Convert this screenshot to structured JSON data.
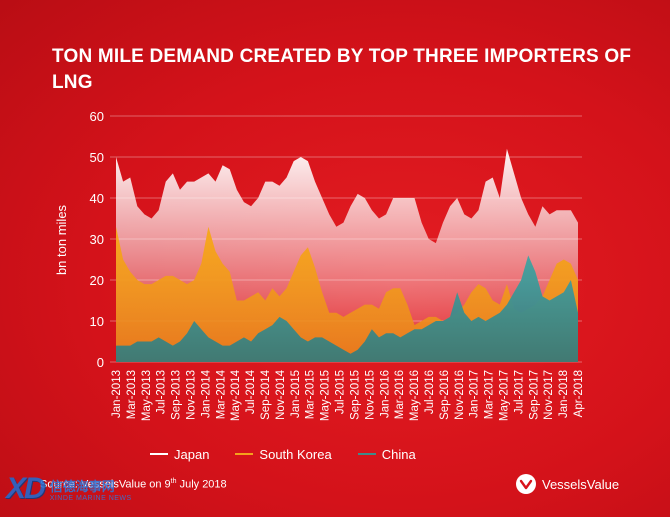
{
  "title": "TON MILE DEMAND CREATED BY TOP THREE IMPORTERS OF LNG",
  "source": "Source: VesselsValue on 9th July 2018",
  "brand": {
    "name": "VesselsValue"
  },
  "watermark": {
    "cn": "信德海事网",
    "en": "XINDE MARINE NEWS"
  },
  "colors": {
    "background": "#d8141b",
    "japan": "#ffffff",
    "south_korea": "#f5a11c",
    "china": "#3f8b8b"
  },
  "chart_data": {
    "type": "area",
    "title": "TON MILE DEMAND CREATED BY TOP THREE IMPORTERS OF LNG",
    "ylabel": "bn ton miles",
    "xlabel": "",
    "ylim": [
      0,
      60
    ],
    "yticks": [
      0,
      10,
      20,
      30,
      40,
      50,
      60
    ],
    "grid": true,
    "legend_position": "bottom",
    "x_tick_labels": [
      "Jan-2013",
      "Mar-2013",
      "May-2013",
      "Jul-2013",
      "Sep-2013",
      "Nov-2013",
      "Jan-2014",
      "Mar-2014",
      "May-2014",
      "Jul-2014",
      "Sep-2014",
      "Nov-2014",
      "Jan-2015",
      "Mar-2015",
      "May-2015",
      "Jul-2015",
      "Sep-2015",
      "Nov-2015",
      "Jan-2016",
      "Mar-2016",
      "May-2016",
      "Jul-2016",
      "Sep-2016",
      "Nov-2016",
      "Jan-2017",
      "Mar-2017",
      "May-2017",
      "Jul-2017",
      "Sep-2017",
      "Nov-2017",
      "Jan-2018",
      "Apr-2018"
    ],
    "x_months": [
      "2013-01",
      "2013-02",
      "2013-03",
      "2013-04",
      "2013-05",
      "2013-06",
      "2013-07",
      "2013-08",
      "2013-09",
      "2013-10",
      "2013-11",
      "2013-12",
      "2014-01",
      "2014-02",
      "2014-03",
      "2014-04",
      "2014-05",
      "2014-06",
      "2014-07",
      "2014-08",
      "2014-09",
      "2014-10",
      "2014-11",
      "2014-12",
      "2015-01",
      "2015-02",
      "2015-03",
      "2015-04",
      "2015-05",
      "2015-06",
      "2015-07",
      "2015-08",
      "2015-09",
      "2015-10",
      "2015-11",
      "2015-12",
      "2016-01",
      "2016-02",
      "2016-03",
      "2016-04",
      "2016-05",
      "2016-06",
      "2016-07",
      "2016-08",
      "2016-09",
      "2016-10",
      "2016-11",
      "2016-12",
      "2017-01",
      "2017-02",
      "2017-03",
      "2017-04",
      "2017-05",
      "2017-06",
      "2017-07",
      "2017-08",
      "2017-09",
      "2017-10",
      "2017-11",
      "2017-12",
      "2018-01",
      "2018-02",
      "2018-03",
      "2018-04",
      "2018-05",
      "2018-06"
    ],
    "series": [
      {
        "name": "Japan",
        "color": "#ffffff",
        "values": [
          50,
          44,
          45,
          38,
          36,
          35,
          37,
          44,
          46,
          42,
          44,
          44,
          45,
          46,
          44,
          48,
          47,
          42,
          39,
          38,
          40,
          44,
          44,
          43,
          45,
          49,
          50,
          49,
          44,
          40,
          36,
          33,
          34,
          38,
          41,
          40,
          37,
          35,
          36,
          40,
          40,
          40,
          40,
          34,
          30,
          29,
          34,
          38,
          40,
          36,
          35,
          37,
          44,
          45,
          40,
          52,
          46,
          40,
          36,
          33,
          38,
          36,
          37,
          37,
          37,
          34
        ]
      },
      {
        "name": "South Korea",
        "color": "#f5a11c",
        "values": [
          33,
          25,
          22,
          20,
          19,
          19,
          20,
          21,
          21,
          20,
          19,
          20,
          24,
          33,
          27,
          24,
          22,
          15,
          15,
          16,
          17,
          15,
          18,
          16,
          18,
          22,
          26,
          28,
          23,
          17,
          12,
          12,
          11,
          12,
          13,
          14,
          14,
          13,
          17,
          18,
          18,
          14,
          9,
          10,
          11,
          11,
          10,
          11,
          12,
          14,
          17,
          19,
          18,
          15,
          14,
          19,
          13,
          12,
          13,
          14,
          16,
          20,
          24,
          25,
          24,
          20
        ]
      },
      {
        "name": "China",
        "color": "#3f8b8b",
        "values": [
          4,
          4,
          4,
          5,
          5,
          5,
          6,
          5,
          4,
          5,
          7,
          10,
          8,
          6,
          5,
          4,
          4,
          5,
          6,
          5,
          7,
          8,
          9,
          11,
          10,
          8,
          6,
          5,
          6,
          6,
          5,
          4,
          3,
          2,
          3,
          5,
          8,
          6,
          7,
          7,
          6,
          7,
          8,
          8,
          9,
          10,
          10,
          11,
          17,
          12,
          10,
          11,
          10,
          11,
          12,
          14,
          17,
          20,
          26,
          22,
          16,
          15,
          16,
          17,
          20,
          12
        ]
      }
    ]
  }
}
